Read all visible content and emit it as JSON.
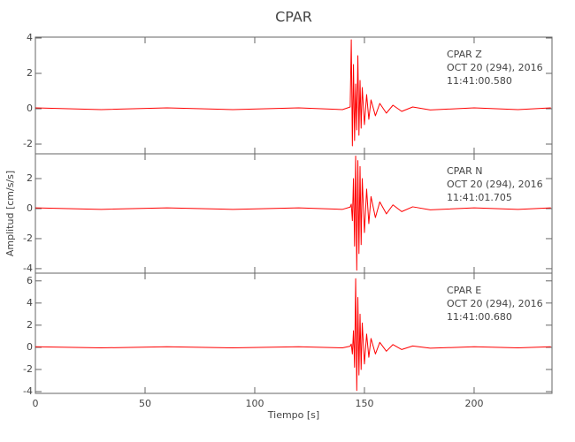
{
  "chart_data": [
    {
      "type": "line",
      "title": "CPAR",
      "annotations": [
        "CPAR  Z",
        "OCT 20 (294), 2016",
        "11:41:00.580"
      ],
      "xlim": [
        0,
        235.5
      ],
      "xticks": [
        0,
        50,
        100,
        150,
        200
      ],
      "ylim": [
        -2.55,
        4.05
      ],
      "yticks": [
        -2,
        0,
        2,
        4
      ],
      "series": [
        {
          "name": "CPAR Z",
          "color": "#ff0000",
          "x": [
            0,
            30,
            60,
            90,
            120,
            140,
            143.5,
            144,
            144.5,
            145,
            145.5,
            146,
            146.5,
            147,
            147.5,
            148,
            148.5,
            149,
            150,
            151,
            152,
            153,
            155,
            157,
            160,
            163,
            167,
            172,
            180,
            200,
            220,
            235
          ],
          "values": [
            0.05,
            -0.05,
            0.05,
            -0.05,
            0.05,
            -0.05,
            0.1,
            3.9,
            -2.1,
            2.5,
            -1.8,
            1.4,
            -1.2,
            3.0,
            -1.5,
            1.6,
            -1.1,
            1.2,
            -0.9,
            0.8,
            -0.6,
            0.5,
            -0.4,
            0.3,
            -0.25,
            0.2,
            -0.15,
            0.1,
            -0.07,
            0.05,
            -0.05,
            0.05
          ]
        }
      ]
    },
    {
      "type": "line",
      "y_label": "Amplitud [cm/s/s]",
      "annotations": [
        "CPAR  N",
        "OCT 20 (294), 2016",
        "11:41:01.705"
      ],
      "xlim": [
        0,
        235.5
      ],
      "xticks": [
        0,
        50,
        100,
        150,
        200
      ],
      "ylim": [
        -4.3,
        3.65
      ],
      "yticks": [
        -4,
        -2,
        0,
        2
      ],
      "series": [
        {
          "name": "CPAR N",
          "color": "#ff0000",
          "x": [
            0,
            30,
            60,
            90,
            120,
            140,
            143.5,
            144,
            144.5,
            145,
            145.5,
            146,
            146.5,
            147,
            147.5,
            148,
            148.5,
            149,
            150,
            151,
            152,
            153,
            155,
            157,
            160,
            163,
            167,
            172,
            180,
            200,
            220,
            235
          ],
          "values": [
            0.05,
            -0.05,
            0.05,
            -0.05,
            0.05,
            -0.05,
            0.1,
            0.3,
            -0.8,
            2.0,
            -2.5,
            3.5,
            -4.1,
            3.2,
            -3.0,
            2.8,
            -2.4,
            2.0,
            -1.6,
            1.3,
            -1.0,
            0.8,
            -0.6,
            0.45,
            -0.35,
            0.25,
            -0.2,
            0.12,
            -0.08,
            0.05,
            -0.05,
            0.05
          ]
        }
      ]
    },
    {
      "type": "line",
      "x_label": "Tiempo [s]",
      "annotations": [
        "CPAR  E",
        "OCT 20 (294), 2016",
        "11:41:00.680"
      ],
      "xlim": [
        0,
        235.5
      ],
      "xticks": [
        0,
        50,
        100,
        150,
        200
      ],
      "ylim": [
        -4.16,
        6.7
      ],
      "yticks": [
        -4,
        -2,
        0,
        2,
        4,
        6
      ],
      "series": [
        {
          "name": "CPAR E",
          "color": "#ff0000",
          "x": [
            0,
            30,
            60,
            90,
            120,
            140,
            143.5,
            144,
            144.5,
            145,
            145.5,
            146,
            146.5,
            147,
            147.5,
            148,
            148.5,
            149,
            150,
            151,
            152,
            153,
            155,
            157,
            160,
            163,
            167,
            172,
            180,
            200,
            220,
            235
          ],
          "values": [
            0.05,
            -0.05,
            0.05,
            -0.05,
            0.05,
            -0.05,
            0.1,
            0.3,
            -0.6,
            1.5,
            -1.8,
            6.2,
            -3.9,
            4.5,
            -2.5,
            3.0,
            -2.0,
            2.2,
            -1.5,
            1.2,
            -0.9,
            0.8,
            -0.6,
            0.45,
            -0.35,
            0.25,
            -0.2,
            0.12,
            -0.08,
            0.05,
            -0.05,
            0.05
          ]
        }
      ]
    }
  ]
}
